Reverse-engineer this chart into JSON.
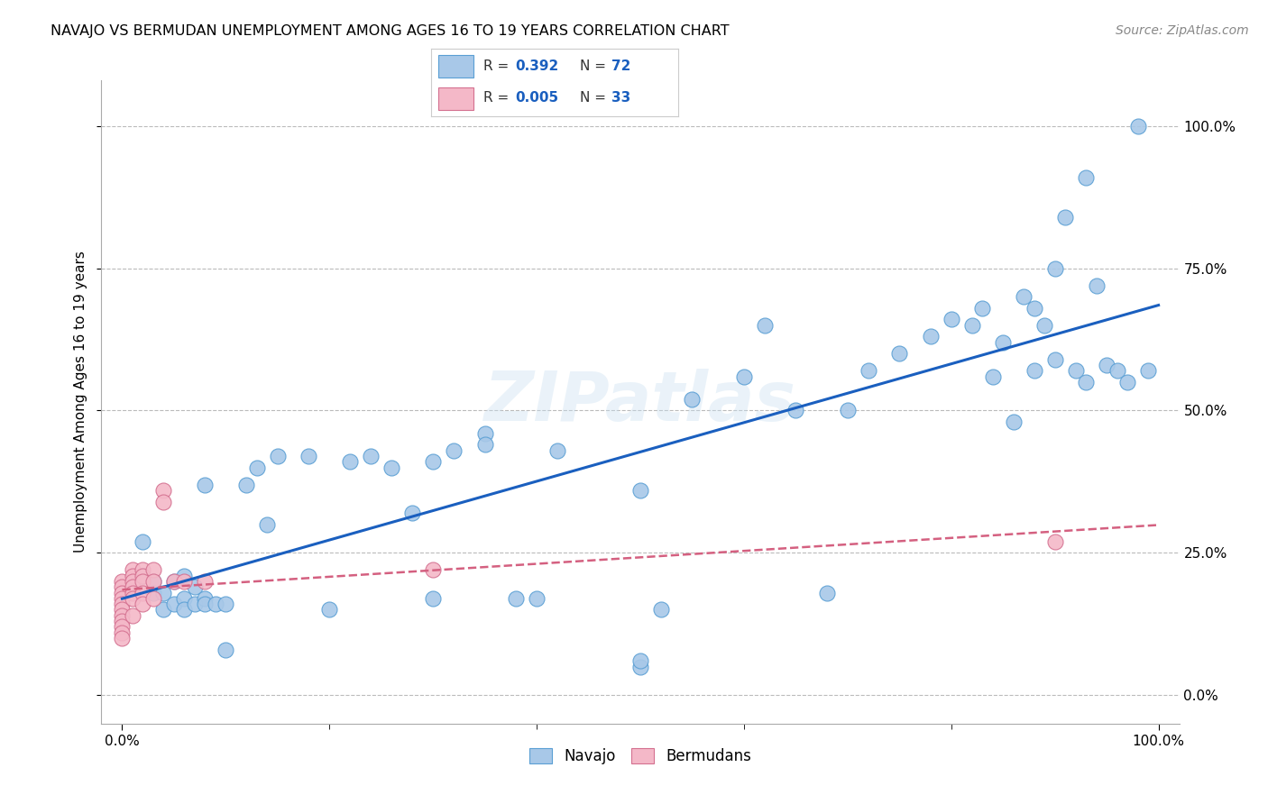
{
  "title": "NAVAJO VS BERMUDAN UNEMPLOYMENT AMONG AGES 16 TO 19 YEARS CORRELATION CHART",
  "source": "Source: ZipAtlas.com",
  "ylabel": "Unemployment Among Ages 16 to 19 years",
  "xlim": [
    -0.02,
    1.02
  ],
  "ylim": [
    -0.05,
    1.08
  ],
  "ytick_labels": [
    "0.0%",
    "25.0%",
    "50.0%",
    "75.0%",
    "100.0%"
  ],
  "ytick_values": [
    0.0,
    0.25,
    0.5,
    0.75,
    1.0
  ],
  "xtick_labels": [
    "0.0%",
    "100.0%"
  ],
  "xtick_values": [
    0.0,
    1.0
  ],
  "grid_yticks": [
    0.0,
    0.25,
    0.5,
    0.75,
    1.0
  ],
  "legend_navajo_R": "0.392",
  "legend_navajo_N": "72",
  "legend_bermudan_R": "0.005",
  "legend_bermudan_N": "33",
  "navajo_color": "#a8c8e8",
  "navajo_edge_color": "#5a9fd4",
  "bermudan_color": "#f4b8c8",
  "bermudan_edge_color": "#d47090",
  "navajo_line_color": "#1a5fbf",
  "bermudan_line_color": "#d46080",
  "background_color": "#ffffff",
  "watermark": "ZIPatlas",
  "navajo_x": [
    0.02,
    0.02,
    0.03,
    0.03,
    0.04,
    0.04,
    0.05,
    0.05,
    0.06,
    0.06,
    0.06,
    0.07,
    0.07,
    0.08,
    0.08,
    0.08,
    0.09,
    0.1,
    0.1,
    0.12,
    0.13,
    0.14,
    0.15,
    0.18,
    0.2,
    0.22,
    0.24,
    0.26,
    0.28,
    0.3,
    0.3,
    0.32,
    0.35,
    0.35,
    0.38,
    0.4,
    0.42,
    0.5,
    0.5,
    0.5,
    0.52,
    0.55,
    0.6,
    0.62,
    0.65,
    0.68,
    0.7,
    0.72,
    0.75,
    0.78,
    0.8,
    0.82,
    0.83,
    0.84,
    0.85,
    0.86,
    0.87,
    0.88,
    0.88,
    0.89,
    0.9,
    0.9,
    0.91,
    0.92,
    0.93,
    0.93,
    0.94,
    0.95,
    0.96,
    0.97,
    0.98,
    0.99
  ],
  "navajo_y": [
    0.27,
    0.21,
    0.2,
    0.18,
    0.18,
    0.15,
    0.2,
    0.16,
    0.21,
    0.17,
    0.15,
    0.19,
    0.16,
    0.37,
    0.17,
    0.16,
    0.16,
    0.08,
    0.16,
    0.37,
    0.4,
    0.3,
    0.42,
    0.42,
    0.15,
    0.41,
    0.42,
    0.4,
    0.32,
    0.41,
    0.17,
    0.43,
    0.46,
    0.44,
    0.17,
    0.17,
    0.43,
    0.36,
    0.05,
    0.06,
    0.15,
    0.52,
    0.56,
    0.65,
    0.5,
    0.18,
    0.5,
    0.57,
    0.6,
    0.63,
    0.66,
    0.65,
    0.68,
    0.56,
    0.62,
    0.48,
    0.7,
    0.68,
    0.57,
    0.65,
    0.59,
    0.75,
    0.84,
    0.57,
    0.55,
    0.91,
    0.72,
    0.58,
    0.57,
    0.55,
    1.0,
    0.57
  ],
  "bermudan_x": [
    0.0,
    0.0,
    0.0,
    0.0,
    0.0,
    0.0,
    0.0,
    0.0,
    0.0,
    0.0,
    0.0,
    0.01,
    0.01,
    0.01,
    0.01,
    0.01,
    0.01,
    0.01,
    0.02,
    0.02,
    0.02,
    0.02,
    0.02,
    0.03,
    0.03,
    0.03,
    0.04,
    0.04,
    0.05,
    0.06,
    0.08,
    0.3,
    0.9
  ],
  "bermudan_y": [
    0.2,
    0.19,
    0.18,
    0.17,
    0.16,
    0.15,
    0.14,
    0.13,
    0.12,
    0.11,
    0.1,
    0.22,
    0.21,
    0.2,
    0.19,
    0.18,
    0.17,
    0.14,
    0.22,
    0.21,
    0.2,
    0.18,
    0.16,
    0.22,
    0.2,
    0.17,
    0.36,
    0.34,
    0.2,
    0.2,
    0.2,
    0.22,
    0.27
  ]
}
